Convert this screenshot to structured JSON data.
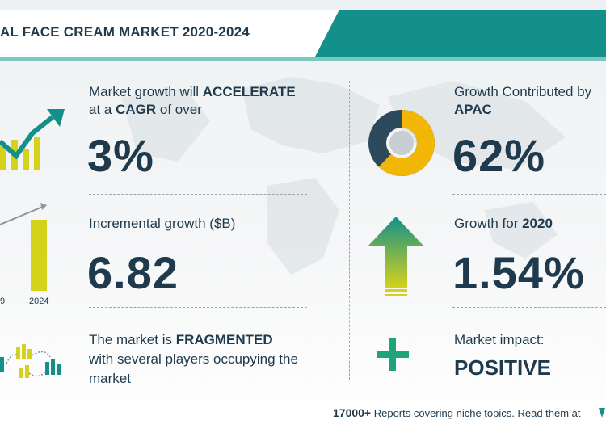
{
  "header": {
    "title": "AL FACE CREAM MARKET 2020-2024"
  },
  "stats": {
    "cagr": {
      "line1_pre": "Market growth will ",
      "line1_bold": "ACCELERATE",
      "line2_pre": "at a ",
      "line2_bold": "CAGR",
      "line2_post": " of over",
      "value": "3%"
    },
    "incremental": {
      "label": "Incremental growth ($B)",
      "value": "6.82",
      "bar_year_left": "9",
      "bar_year_right": "2024"
    },
    "market": {
      "line1_pre": "The market is ",
      "line1_bold": "FRAGMENTED",
      "line2": "with several players occupying the",
      "line3": "market"
    },
    "apac": {
      "line1": "Growth Contributed by",
      "line2_bold": "APAC",
      "value": "62%"
    },
    "growth_2020": {
      "label_pre": "Growth for ",
      "label_bold": "2020",
      "value": "1.54%"
    },
    "impact": {
      "label": "Market impact:",
      "value": "POSITIVE"
    }
  },
  "footer": {
    "count": "17000+",
    "text": " Reports covering niche topics. Read them at"
  },
  "colors": {
    "teal": "#14908a",
    "navy": "#1f3a4d",
    "yellow": "#d4d21a",
    "gold": "#f2b705",
    "donut_dark": "#2d4a5c",
    "green": "#1fa37a"
  }
}
